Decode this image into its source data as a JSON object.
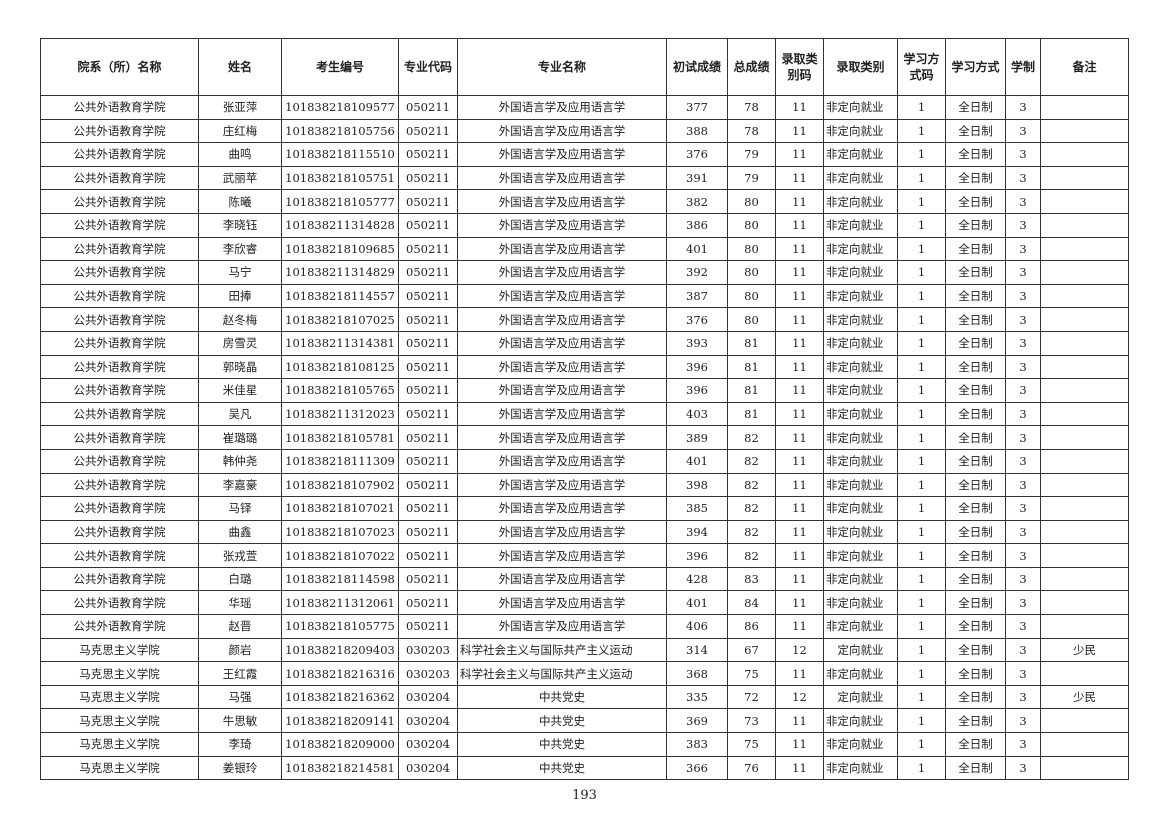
{
  "headers": [
    "院系（所）名称",
    "姓名",
    "考生编号",
    "专业代码",
    "专业名称",
    "初试成绩",
    "总成绩",
    "录取类别码",
    "录取类别",
    "学习方式码",
    "学习方式",
    "学制",
    "备注"
  ],
  "rows": [
    [
      "公共外语教育学院",
      "张亚萍",
      "101838218109577",
      "050211",
      "外国语言学及应用语言学",
      "377",
      "78",
      "11",
      "非定向就业",
      "1",
      "全日制",
      "3",
      ""
    ],
    [
      "公共外语教育学院",
      "庄红梅",
      "101838218105756",
      "050211",
      "外国语言学及应用语言学",
      "388",
      "78",
      "11",
      "非定向就业",
      "1",
      "全日制",
      "3",
      ""
    ],
    [
      "公共外语教育学院",
      "曲鸣",
      "101838218115510",
      "050211",
      "外国语言学及应用语言学",
      "376",
      "79",
      "11",
      "非定向就业",
      "1",
      "全日制",
      "3",
      ""
    ],
    [
      "公共外语教育学院",
      "武丽苹",
      "101838218105751",
      "050211",
      "外国语言学及应用语言学",
      "391",
      "79",
      "11",
      "非定向就业",
      "1",
      "全日制",
      "3",
      ""
    ],
    [
      "公共外语教育学院",
      "陈曦",
      "101838218105777",
      "050211",
      "外国语言学及应用语言学",
      "382",
      "80",
      "11",
      "非定向就业",
      "1",
      "全日制",
      "3",
      ""
    ],
    [
      "公共外语教育学院",
      "李晓钰",
      "101838211314828",
      "050211",
      "外国语言学及应用语言学",
      "386",
      "80",
      "11",
      "非定向就业",
      "1",
      "全日制",
      "3",
      ""
    ],
    [
      "公共外语教育学院",
      "李欣睿",
      "101838218109685",
      "050211",
      "外国语言学及应用语言学",
      "401",
      "80",
      "11",
      "非定向就业",
      "1",
      "全日制",
      "3",
      ""
    ],
    [
      "公共外语教育学院",
      "马宁",
      "101838211314829",
      "050211",
      "外国语言学及应用语言学",
      "392",
      "80",
      "11",
      "非定向就业",
      "1",
      "全日制",
      "3",
      ""
    ],
    [
      "公共外语教育学院",
      "田捧",
      "101838218114557",
      "050211",
      "外国语言学及应用语言学",
      "387",
      "80",
      "11",
      "非定向就业",
      "1",
      "全日制",
      "3",
      ""
    ],
    [
      "公共外语教育学院",
      "赵冬梅",
      "101838218107025",
      "050211",
      "外国语言学及应用语言学",
      "376",
      "80",
      "11",
      "非定向就业",
      "1",
      "全日制",
      "3",
      ""
    ],
    [
      "公共外语教育学院",
      "房雪灵",
      "101838211314381",
      "050211",
      "外国语言学及应用语言学",
      "393",
      "81",
      "11",
      "非定向就业",
      "1",
      "全日制",
      "3",
      ""
    ],
    [
      "公共外语教育学院",
      "郭晓晶",
      "101838218108125",
      "050211",
      "外国语言学及应用语言学",
      "396",
      "81",
      "11",
      "非定向就业",
      "1",
      "全日制",
      "3",
      ""
    ],
    [
      "公共外语教育学院",
      "米佳星",
      "101838218105765",
      "050211",
      "外国语言学及应用语言学",
      "396",
      "81",
      "11",
      "非定向就业",
      "1",
      "全日制",
      "3",
      ""
    ],
    [
      "公共外语教育学院",
      "吴凡",
      "101838211312023",
      "050211",
      "外国语言学及应用语言学",
      "403",
      "81",
      "11",
      "非定向就业",
      "1",
      "全日制",
      "3",
      ""
    ],
    [
      "公共外语教育学院",
      "崔璐璐",
      "101838218105781",
      "050211",
      "外国语言学及应用语言学",
      "389",
      "82",
      "11",
      "非定向就业",
      "1",
      "全日制",
      "3",
      ""
    ],
    [
      "公共外语教育学院",
      "韩仲尧",
      "101838218111309",
      "050211",
      "外国语言学及应用语言学",
      "401",
      "82",
      "11",
      "非定向就业",
      "1",
      "全日制",
      "3",
      ""
    ],
    [
      "公共外语教育学院",
      "李嘉豪",
      "101838218107902",
      "050211",
      "外国语言学及应用语言学",
      "398",
      "82",
      "11",
      "非定向就业",
      "1",
      "全日制",
      "3",
      ""
    ],
    [
      "公共外语教育学院",
      "马铎",
      "101838218107021",
      "050211",
      "外国语言学及应用语言学",
      "385",
      "82",
      "11",
      "非定向就业",
      "1",
      "全日制",
      "3",
      ""
    ],
    [
      "公共外语教育学院",
      "曲鑫",
      "101838218107023",
      "050211",
      "外国语言学及应用语言学",
      "394",
      "82",
      "11",
      "非定向就业",
      "1",
      "全日制",
      "3",
      ""
    ],
    [
      "公共外语教育学院",
      "张戎萱",
      "101838218107022",
      "050211",
      "外国语言学及应用语言学",
      "396",
      "82",
      "11",
      "非定向就业",
      "1",
      "全日制",
      "3",
      ""
    ],
    [
      "公共外语教育学院",
      "白璐",
      "101838218114598",
      "050211",
      "外国语言学及应用语言学",
      "428",
      "83",
      "11",
      "非定向就业",
      "1",
      "全日制",
      "3",
      ""
    ],
    [
      "公共外语教育学院",
      "华瑶",
      "101838211312061",
      "050211",
      "外国语言学及应用语言学",
      "401",
      "84",
      "11",
      "非定向就业",
      "1",
      "全日制",
      "3",
      ""
    ],
    [
      "公共外语教育学院",
      "赵晋",
      "101838218105775",
      "050211",
      "外国语言学及应用语言学",
      "406",
      "86",
      "11",
      "非定向就业",
      "1",
      "全日制",
      "3",
      ""
    ],
    [
      "马克思主义学院",
      "颜岩",
      "101838218209403",
      "030203",
      "科学社会主义与国际共产主义运动",
      "314",
      "67",
      "12",
      "定向就业",
      "1",
      "全日制",
      "3",
      "少民"
    ],
    [
      "马克思主义学院",
      "王红霞",
      "101838218216316",
      "030203",
      "科学社会主义与国际共产主义运动",
      "368",
      "75",
      "11",
      "非定向就业",
      "1",
      "全日制",
      "3",
      ""
    ],
    [
      "马克思主义学院",
      "马强",
      "101838218216362",
      "030204",
      "中共党史",
      "335",
      "72",
      "12",
      "定向就业",
      "1",
      "全日制",
      "3",
      "少民"
    ],
    [
      "马克思主义学院",
      "牛思敏",
      "101838218209141",
      "030204",
      "中共党史",
      "369",
      "73",
      "11",
      "非定向就业",
      "1",
      "全日制",
      "3",
      ""
    ],
    [
      "马克思主义学院",
      "李琦",
      "101838218209000",
      "030204",
      "中共党史",
      "383",
      "75",
      "11",
      "非定向就业",
      "1",
      "全日制",
      "3",
      ""
    ],
    [
      "马克思主义学院",
      "姜银玲",
      "101838218214581",
      "030204",
      "中共党史",
      "366",
      "76",
      "11",
      "非定向就业",
      "1",
      "全日制",
      "3",
      ""
    ]
  ],
  "page_number": "193"
}
